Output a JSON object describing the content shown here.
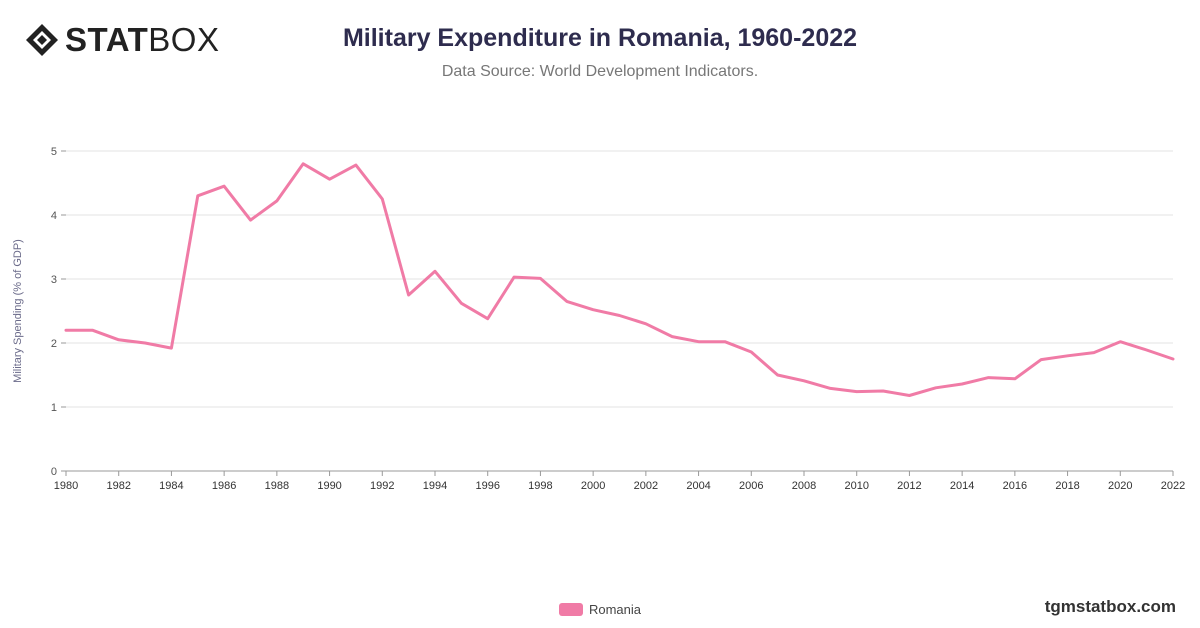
{
  "brand": {
    "logo_bold": "STAT",
    "logo_light": "BOX",
    "logo_icon": "diamond-logo-icon"
  },
  "header": {
    "title": "Military Expenditure in Romania, 1960-2022",
    "subtitle": "Data Source: World Development Indicators."
  },
  "footer": {
    "watermark": "tgmstatbox.com"
  },
  "colors": {
    "series": "#f07ba6",
    "grid": "#e3e3e3",
    "axis": "#777777",
    "title": "#2e2c4e"
  },
  "chart_data": {
    "type": "line",
    "title": "Military Expenditure in Romania, 1960-2022",
    "ylabel": "Military Spending (% of GDP)",
    "xlabel": "",
    "xlim": [
      1980,
      2022
    ],
    "ylim": [
      0,
      5
    ],
    "x_ticks": [
      "1980",
      "1982",
      "1984",
      "1986",
      "1988",
      "1990",
      "1992",
      "1994",
      "1996",
      "1998",
      "2000",
      "2002",
      "2004",
      "2006",
      "2008",
      "2010",
      "2012",
      "2014",
      "2016",
      "2018",
      "2020",
      "2022"
    ],
    "y_ticks": [
      "0",
      "1",
      "2",
      "3",
      "4",
      "5"
    ],
    "grid": true,
    "legend_position": "bottom-center",
    "x": [
      1980,
      1981,
      1982,
      1983,
      1984,
      1985,
      1986,
      1987,
      1988,
      1989,
      1990,
      1991,
      1992,
      1993,
      1994,
      1995,
      1996,
      1997,
      1998,
      1999,
      2000,
      2001,
      2002,
      2003,
      2004,
      2005,
      2006,
      2007,
      2008,
      2009,
      2010,
      2011,
      2012,
      2013,
      2014,
      2015,
      2016,
      2017,
      2018,
      2019,
      2020,
      2021,
      2022
    ],
    "series": [
      {
        "name": "Romania",
        "values": [
          2.2,
          2.2,
          2.05,
          2.0,
          1.92,
          4.3,
          4.45,
          3.92,
          4.22,
          4.8,
          4.56,
          4.78,
          4.25,
          2.75,
          3.12,
          2.62,
          2.38,
          3.03,
          3.01,
          2.65,
          2.52,
          2.43,
          2.3,
          2.1,
          2.02,
          2.02,
          1.86,
          1.5,
          1.41,
          1.29,
          1.24,
          1.25,
          1.18,
          1.3,
          1.36,
          1.46,
          1.44,
          1.74,
          1.8,
          1.85,
          2.02,
          1.89,
          1.75
        ]
      }
    ]
  }
}
